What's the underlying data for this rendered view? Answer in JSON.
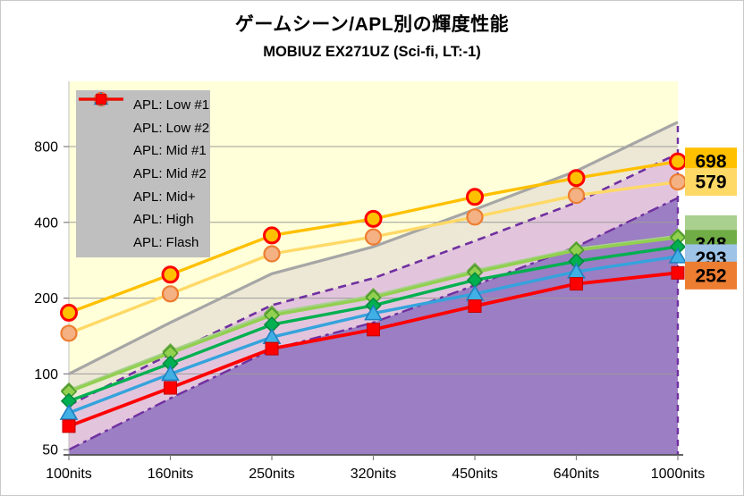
{
  "title": "ゲームシーン/APL別の輝度性能",
  "subtitle": "MOBIUZ EX271UZ (Sci-fi, LT:-1)",
  "chart_data": {
    "type": "line",
    "x_axis": {
      "categories": [
        "100nits",
        "160nits",
        "250nits",
        "320nits",
        "450nits",
        "640nits",
        "1000nits"
      ],
      "values_nits": [
        100,
        160,
        250,
        320,
        450,
        640,
        1000
      ]
    },
    "y_axis": {
      "scale": "log2",
      "tick_labels": [
        "800",
        "400",
        "200",
        "100",
        "50"
      ],
      "tick_values": [
        800,
        400,
        200,
        100,
        50
      ],
      "grid_values": [
        800,
        400,
        200,
        100
      ]
    },
    "series": [
      {
        "name": "APL: Low #1",
        "marker": "circle",
        "line_color": "#FFC000",
        "marker_fill": "#FFC000",
        "marker_stroke": "#FF0000",
        "values": [
          175,
          248,
          355,
          413,
          505,
          600,
          698
        ],
        "end_label": {
          "text": "698",
          "bg": "#FFC000"
        }
      },
      {
        "name": "APL: Low #2",
        "marker": "circle",
        "line_color": "#FFD966",
        "marker_fill": "#F4B183",
        "marker_stroke": "#ED7D31",
        "values": [
          145,
          208,
          300,
          350,
          420,
          512,
          579
        ],
        "end_label": {
          "text": "579",
          "bg": "#FFD966"
        }
      },
      {
        "name": "APL: Mid #1",
        "marker": "diamond",
        "line_color": "#A9D08E",
        "marker_fill": "#A9D08E",
        "marker_stroke": "#70AD47",
        "values": [
          86,
          123,
          174,
          204,
          257,
          313,
          352
        ],
        "end_label": {
          "text": "",
          "bg": "#A9D08E"
        }
      },
      {
        "name": "APL: Mid #2",
        "marker": "diamond",
        "line_color": "#92D050",
        "marker_fill": "#92D050",
        "marker_stroke": "#4E9A2E",
        "values": [
          85,
          121,
          171,
          201,
          253,
          310,
          348
        ],
        "end_label": {
          "text": "348",
          "bg": "#70AD47"
        }
      },
      {
        "name": "APL: Mid+",
        "marker": "diamond",
        "line_color": "#00B050",
        "marker_fill": "#00B050",
        "marker_stroke": "#008A3E",
        "values": [
          78,
          110,
          157,
          187,
          236,
          280,
          320
        ],
        "end_label": null
      },
      {
        "name": "APL: High",
        "marker": "triangle",
        "line_color": "#35A3DC",
        "marker_fill": "#41B0E4",
        "marker_stroke": "#1F7FC0",
        "values": [
          70,
          100,
          140,
          174,
          208,
          255,
          293
        ],
        "end_label": {
          "text": "293",
          "bg": "#9DC3E6"
        }
      },
      {
        "name": "APL: Flash",
        "marker": "square",
        "line_color": "#FF0000",
        "marker_fill": "#FF0000",
        "marker_stroke": "#C00000",
        "values": [
          62,
          88,
          126,
          150,
          186,
          228,
          252
        ],
        "end_label": {
          "text": "252",
          "bg": "#ED7D31"
        }
      }
    ],
    "reference_bands": {
      "plot_background": "#FFFFD9",
      "target_line": {
        "multiplier": 1.0,
        "color": "#A6A6A6",
        "style": "solid"
      },
      "dash_75_line": {
        "multiplier": 0.75,
        "color": "#7030A0",
        "style": "dashed"
      },
      "dash_50_line": {
        "multiplier": 0.5,
        "color": "#7030A0",
        "style": "dash-dot"
      },
      "fill_100_to_75": "#EDE8D5",
      "fill_75_to_50": "#E2C5DD",
      "fill_below_50": "#9B7EC3"
    },
    "legend_position": "top-left",
    "grid": true
  }
}
